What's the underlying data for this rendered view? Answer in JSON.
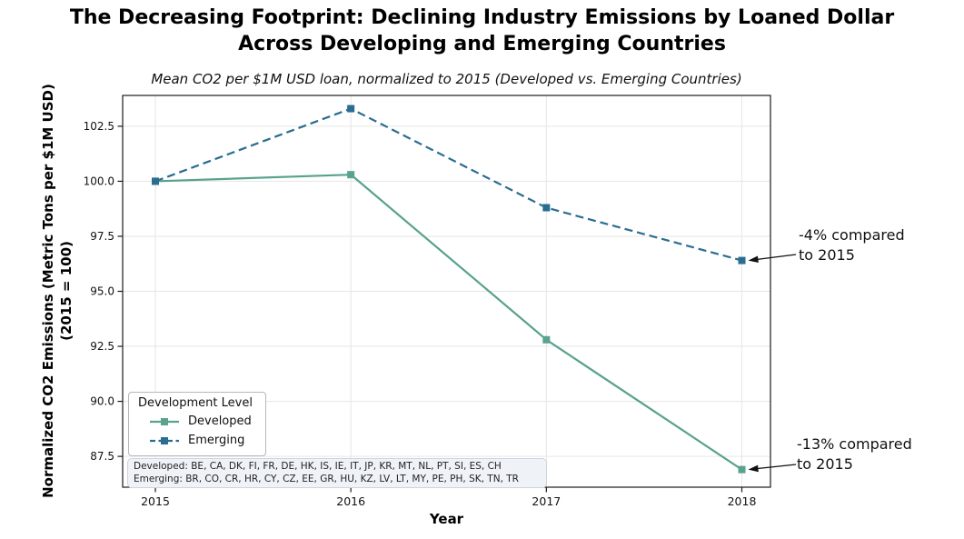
{
  "title": {
    "lines": [
      "The Decreasing Footprint: Declining Industry Emissions by Loaned Dollar",
      "Across Developing and Emerging Countries"
    ]
  },
  "subtitle": "Mean CO2 per $1M USD loan, normalized to 2015 (Developed vs. Emerging Countries)",
  "chart_data": {
    "type": "line",
    "x": [
      2015,
      2016,
      2017,
      2018
    ],
    "xticks": [
      "2015",
      "2016",
      "2017",
      "2018"
    ],
    "yticks": [
      87.5,
      90.0,
      92.5,
      95.0,
      97.5,
      100.0,
      102.5
    ],
    "ylim": [
      86.1,
      103.9
    ],
    "grid": true,
    "series": [
      {
        "name": "Developed",
        "values": [
          100.0,
          100.3,
          92.8,
          86.9
        ],
        "color": "#58a28e",
        "line_style": "solid",
        "marker": "square"
      },
      {
        "name": "Emerging",
        "values": [
          100.0,
          103.3,
          98.8,
          96.4
        ],
        "color": "#2b6d90",
        "line_style": "dashed",
        "marker": "square"
      }
    ],
    "xlabel": "Year",
    "ylabel_lines": [
      "Normalized CO2 Emissions (Metric Tons per $1M USD)",
      "(2015 = 100)"
    ],
    "legend": {
      "title": "Development Level",
      "position": "lower-left"
    },
    "annotations": [
      {
        "text_lines": [
          "-4% compared",
          "to 2015"
        ],
        "target_series": "Emerging",
        "target_x": 2018,
        "target_value": 96.4
      },
      {
        "text_lines": [
          "-13% compared",
          "to 2015"
        ],
        "target_series": "Developed",
        "target_x": 2018,
        "target_value": 86.9
      }
    ]
  },
  "footnote": {
    "lines": [
      "Developed: BE, CA, DK, FI, FR, DE, HK, IS, IE, IT, JP, KR, MT, NL, PT, SI, ES, CH",
      "Emerging: BR, CO, CR, HR, CY, CZ, EE, GR, HU, KZ, LV, LT, MY, PE, PH, SK, TN, TR"
    ]
  }
}
